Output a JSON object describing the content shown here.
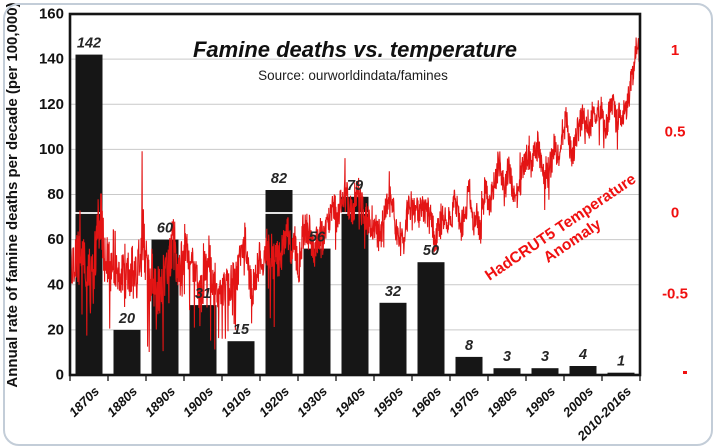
{
  "chart_data": {
    "type": "bar+line",
    "title": "Famine deaths vs. temperature",
    "subtitle": "Source: ourworldindata/famines",
    "categories": [
      "1870s",
      "1880s",
      "1890s",
      "1900s",
      "1910s",
      "1920s",
      "1930s",
      "1940s",
      "1950s",
      "1960s",
      "1970s",
      "1980s",
      "1990s",
      "2000s",
      "2010-2016s"
    ],
    "bar_series": {
      "name": "Annual rate of famine deaths per decade",
      "values": [
        142,
        20,
        60,
        31,
        15,
        82,
        56,
        79,
        32,
        50,
        8,
        3,
        3,
        4,
        1
      ]
    },
    "left_axis": {
      "label": "Annual rate of famine deaths per decade (per 100,000)",
      "ticks": [
        0,
        20,
        40,
        60,
        80,
        100,
        120,
        140,
        160
      ],
      "range": [
        0,
        160
      ],
      "grid": "horizontal gridlines every 20 units"
    },
    "right_axis": {
      "tick_labels": [
        "1",
        "0.5",
        "0",
        "-0.5"
      ],
      "tick_values": [
        1,
        0.5,
        0,
        -0.5
      ],
      "zero_at_left_units": 71.8,
      "left_units_per_degree": 72,
      "color": "#f01010"
    },
    "line_series": {
      "name": "HadCRUT5 Temperature Anomaly",
      "start_year": 1870,
      "end_year": 2016,
      "annual_anomaly": [
        -0.28,
        -0.33,
        -0.26,
        -0.3,
        -0.36,
        -0.38,
        -0.4,
        -0.1,
        -0.02,
        -0.3,
        -0.32,
        -0.26,
        -0.29,
        -0.34,
        -0.43,
        -0.4,
        -0.36,
        -0.43,
        -0.3,
        -0.12,
        -0.43,
        -0.38,
        -0.46,
        -0.48,
        -0.42,
        -0.38,
        -0.22,
        -0.18,
        -0.42,
        -0.26,
        -0.2,
        -0.26,
        -0.36,
        -0.46,
        -0.5,
        -0.36,
        -0.28,
        -0.46,
        -0.46,
        -0.46,
        -0.46,
        -0.46,
        -0.42,
        -0.4,
        -0.24,
        -0.14,
        -0.36,
        -0.48,
        -0.36,
        -0.28,
        -0.26,
        -0.2,
        -0.3,
        -0.28,
        -0.28,
        -0.22,
        -0.1,
        -0.22,
        -0.2,
        -0.34,
        -0.12,
        -0.08,
        -0.14,
        -0.26,
        -0.12,
        -0.16,
        -0.12,
        -0.01,
        0.01,
        -0.01,
        0.07,
        0.1,
        0.04,
        0.05,
        0.14,
        0.06,
        -0.06,
        -0.04,
        -0.06,
        -0.09,
        -0.16,
        -0.02,
        0.04,
        0.09,
        -0.11,
        -0.13,
        -0.19,
        0.02,
        0.06,
        0.03,
        -0.02,
        0.04,
        0.02,
        0.05,
        -0.19,
        -0.11,
        -0.04,
        -0.02,
        -0.07,
        0.06,
        0.03,
        -0.09,
        0.0,
        0.14,
        -0.08,
        -0.02,
        -0.11,
        0.16,
        0.05,
        0.15,
        0.25,
        0.3,
        0.12,
        0.29,
        0.14,
        0.1,
        0.17,
        0.31,
        0.37,
        0.27,
        0.43,
        0.39,
        0.21,
        0.23,
        0.3,
        0.43,
        0.31,
        0.45,
        0.59,
        0.37,
        0.39,
        0.51,
        0.59,
        0.59,
        0.52,
        0.64,
        0.59,
        0.63,
        0.5,
        0.62,
        0.67,
        0.56,
        0.61,
        0.64,
        0.7,
        0.84,
        1.02
      ],
      "spikes": [
        {
          "year": 1878.1,
          "value": 0.12
        },
        {
          "year": 1888.6,
          "value": 0.38
        }
      ],
      "final_spike": {
        "year": 2016.95,
        "value": 1.26
      },
      "noise": {
        "seed": 42,
        "amp_early": 0.17,
        "amp_mid": 0.12,
        "amp_late": 0.095,
        "spike_chance": 0.05,
        "spike_mult": 2.2,
        "early_dip_chance": 0.035,
        "early_dip": 0.32
      }
    },
    "annotation": {
      "line1": "HadCRUT5 Temperature",
      "line2": "Anomaly",
      "rotation_deg": -34
    },
    "zero_line": {
      "anomaly": 0,
      "color": "#ffffff"
    },
    "colors": {
      "bar": "#161616",
      "line": "#e31414",
      "right_axis_text": "#f01010",
      "grid": "#c9c9c9",
      "plot_border": "#141414",
      "frame_border": "#c3cdd8"
    },
    "legend": "none"
  }
}
